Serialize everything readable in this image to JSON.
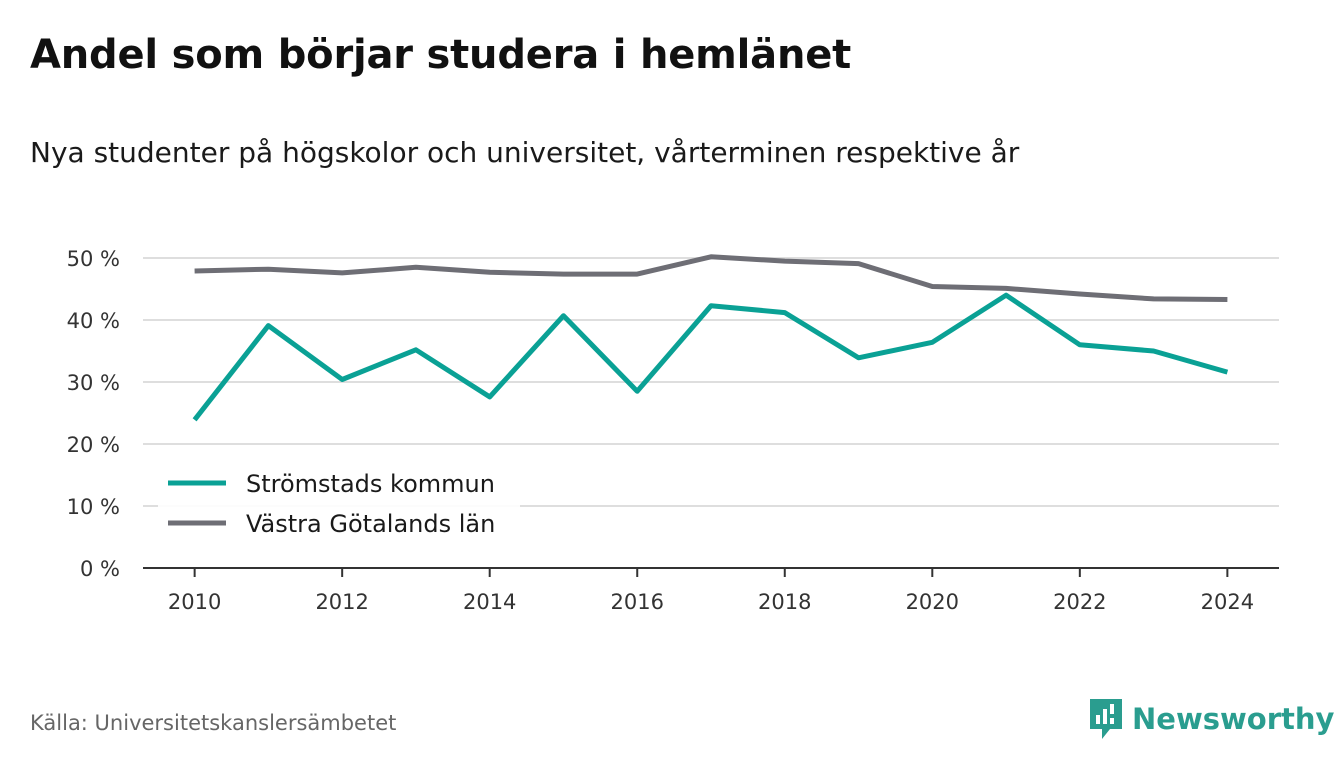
{
  "title": "Andel som börjar studera i hemlänet",
  "subtitle": "Nya studenter på högskolor och universitet, vårterminen respektive år",
  "source": "Källa: Universitetskanslersämbetet",
  "brand": "Newsworthy",
  "chart_data": {
    "type": "line",
    "x": [
      2010,
      2011,
      2012,
      2013,
      2014,
      2015,
      2016,
      2017,
      2018,
      2019,
      2020,
      2021,
      2022,
      2023,
      2024
    ],
    "xticks": [
      2010,
      2012,
      2014,
      2016,
      2018,
      2020,
      2022,
      2024
    ],
    "xtick_labels": [
      "2010",
      "2012",
      "2014",
      "2016",
      "2018",
      "2020",
      "2022",
      "2024"
    ],
    "yticks": [
      0,
      10,
      20,
      30,
      40,
      50
    ],
    "ytick_labels": [
      "0 %",
      "10 %",
      "20 %",
      "30 %",
      "40 %",
      "50 %"
    ],
    "ylim": [
      0,
      50
    ],
    "xlim": [
      2009.3,
      2024.7
    ],
    "grid": true,
    "legend_position": "bottom-left",
    "series": [
      {
        "name": "Strömstads kommun",
        "color": "#0aa195",
        "values": [
          23.9,
          39.1,
          30.4,
          35.2,
          27.6,
          40.7,
          28.5,
          42.3,
          41.2,
          33.9,
          36.4,
          44.0,
          36.0,
          35.0,
          31.6
        ]
      },
      {
        "name": "Västra Götalands län",
        "color": "#6e6e75",
        "values": [
          47.9,
          48.2,
          47.6,
          48.5,
          47.7,
          47.4,
          47.4,
          50.2,
          49.5,
          49.1,
          45.4,
          45.1,
          44.2,
          43.4,
          43.3
        ]
      }
    ]
  }
}
